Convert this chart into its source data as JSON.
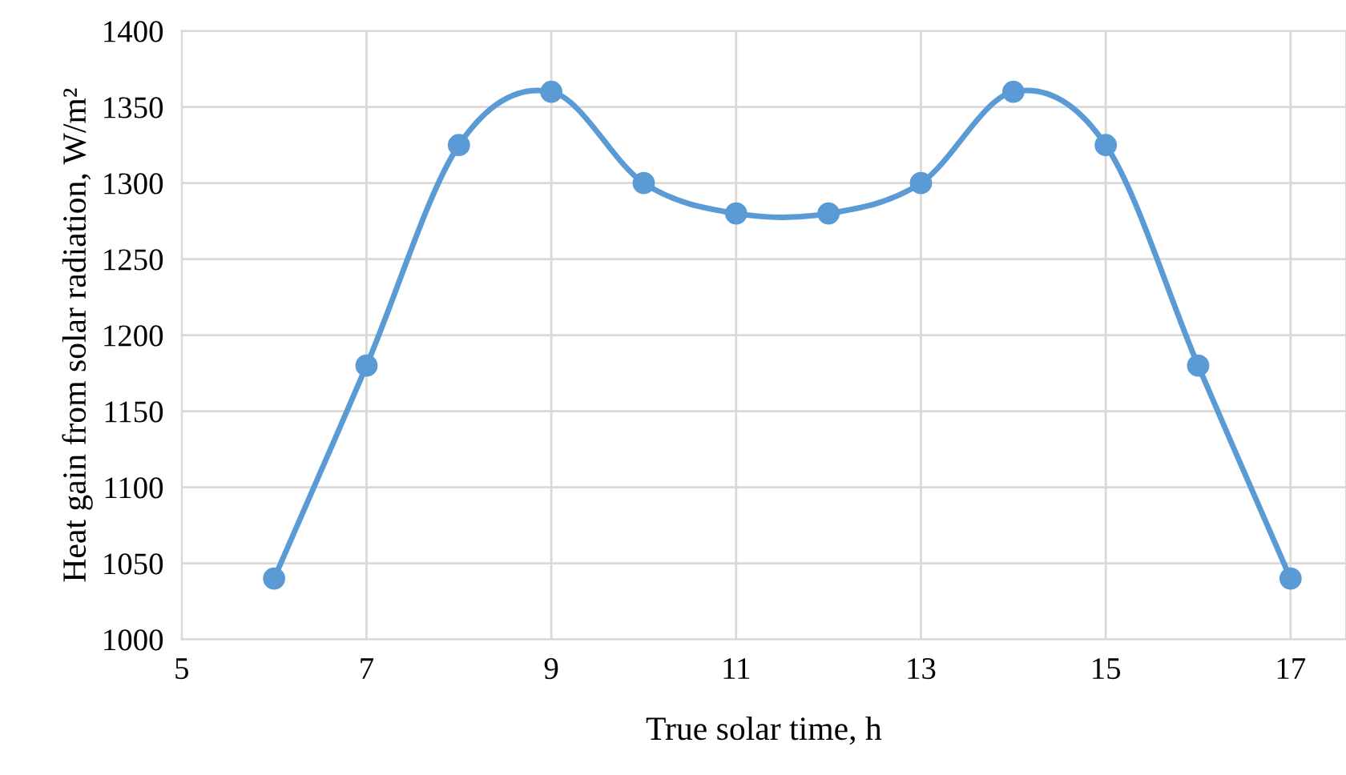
{
  "chart_data": {
    "type": "line",
    "xlabel": "True solar time, h",
    "ylabel": "Heat gain from solar radiation, W/m²",
    "x": [
      6,
      7,
      8,
      9,
      10,
      11,
      12,
      13,
      14,
      15,
      16,
      17
    ],
    "series": [
      {
        "color": "#5b9bd5",
        "values": [
          1040,
          1180,
          1325,
          1360,
          1300,
          1280,
          1280,
          1300,
          1360,
          1325,
          1180,
          1040
        ]
      }
    ],
    "xlim": [
      5,
      17.6
    ],
    "xticks": [
      5,
      7,
      9,
      11,
      13,
      15,
      17
    ],
    "ylim": [
      1000,
      1400
    ],
    "yticks": [
      1000,
      1050,
      1100,
      1150,
      1200,
      1250,
      1300,
      1350,
      1400
    ],
    "grid": true,
    "marker": "circle",
    "line_style": "solid"
  }
}
